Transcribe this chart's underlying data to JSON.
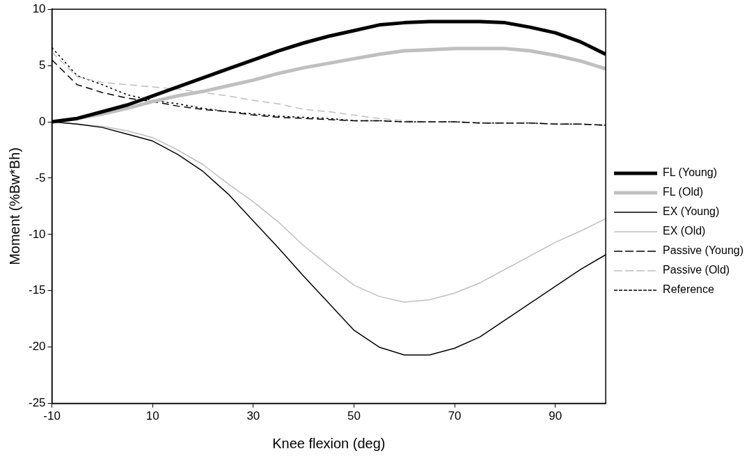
{
  "chart_data": {
    "type": "line",
    "xlabel": "Knee flexion (deg)",
    "ylabel": "Moment (%Bw*Bh)",
    "x": [
      -10,
      -5,
      0,
      5,
      10,
      15,
      20,
      25,
      30,
      35,
      40,
      45,
      50,
      55,
      60,
      65,
      70,
      75,
      80,
      85,
      90,
      95,
      100
    ],
    "xlim": [
      -10,
      100
    ],
    "xticks": [
      -10,
      10,
      30,
      50,
      70,
      90
    ],
    "ylim": [
      -25,
      10
    ],
    "yticks": [
      -25,
      -20,
      -15,
      -10,
      -5,
      0,
      5,
      10
    ],
    "grid": false,
    "legend": "right",
    "marker": "none",
    "series": [
      {
        "name": "FL (Young)",
        "color": "#000000",
        "line_style": "solid",
        "values": [
          0,
          0.3,
          0.9,
          1.5,
          2.3,
          3.1,
          3.9,
          4.7,
          5.5,
          6.3,
          7.0,
          7.6,
          8.1,
          8.6,
          8.8,
          8.9,
          8.9,
          8.9,
          8.8,
          8.4,
          7.9,
          7.1,
          6.0
        ]
      },
      {
        "name": "FL (Old)",
        "color": "#bfbfbf",
        "line_style": "solid",
        "values": [
          0,
          0.3,
          0.7,
          1.2,
          1.8,
          2.3,
          2.7,
          3.2,
          3.7,
          4.3,
          4.8,
          5.2,
          5.6,
          6.0,
          6.3,
          6.4,
          6.5,
          6.5,
          6.5,
          6.3,
          5.9,
          5.4,
          4.7
        ]
      },
      {
        "name": "EX (Young)",
        "color": "#000000",
        "line_style": "solid",
        "values": [
          0,
          -0.2,
          -0.5,
          -1.1,
          -1.7,
          -2.9,
          -4.4,
          -6.4,
          -8.8,
          -11.2,
          -13.7,
          -16.1,
          -18.5,
          -20.0,
          -20.7,
          -20.7,
          -20.1,
          -19.1,
          -17.6,
          -16.1,
          -14.6,
          -13.1,
          -11.8
        ]
      },
      {
        "name": "EX (Old)",
        "color": "#bfbfbf",
        "line_style": "solid",
        "values": [
          0,
          -0.2,
          -0.4,
          -0.8,
          -1.4,
          -2.5,
          -3.8,
          -5.5,
          -7.1,
          -8.9,
          -11.0,
          -12.8,
          -14.5,
          -15.5,
          -16.0,
          -15.8,
          -15.2,
          -14.3,
          -13.1,
          -11.9,
          -10.7,
          -9.7,
          -8.6
        ]
      },
      {
        "name": "Passive (Young)",
        "color": "#000000",
        "line_style": "dashed",
        "values": [
          5.5,
          3.3,
          2.6,
          2.1,
          1.8,
          1.4,
          1.1,
          0.9,
          0.6,
          0.4,
          0.3,
          0.2,
          0.1,
          0.1,
          0,
          0,
          0,
          -0.1,
          -0.1,
          -0.1,
          -0.2,
          -0.2,
          -0.3
        ]
      },
      {
        "name": "Passive (Old)",
        "color": "#bfbfbf",
        "line_style": "dashed",
        "values": [
          6.2,
          4.0,
          3.5,
          3.3,
          3.1,
          2.9,
          2.6,
          2.3,
          1.9,
          1.6,
          1.1,
          0.9,
          0.6,
          0.3,
          0.1,
          0,
          0,
          -0.1,
          -0.1,
          -0.1,
          -0.2,
          -0.2,
          -0.3
        ]
      },
      {
        "name": "Reference",
        "color": "#000000",
        "line_style": "dotted",
        "values": [
          6.6,
          4.1,
          3.3,
          2.4,
          1.9,
          1.6,
          1.2,
          0.9,
          0.7,
          0.5,
          0.4,
          0.3,
          0.1,
          0.1,
          0,
          0,
          0,
          -0.1,
          -0.1,
          -0.1,
          -0.2,
          -0.2,
          -0.3
        ]
      }
    ]
  }
}
